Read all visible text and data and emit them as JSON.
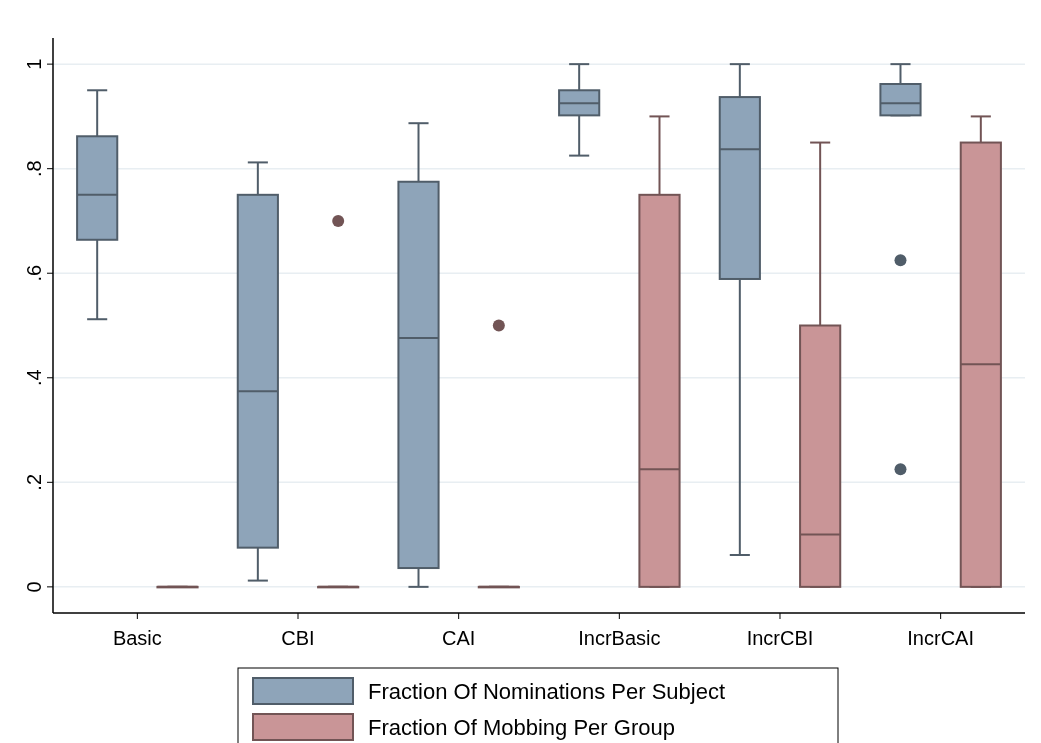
{
  "chart_data": {
    "type": "box",
    "categories": [
      "Basic",
      "CBI",
      "CAI",
      "IncrBasic",
      "IncrCBI",
      "IncrCAI"
    ],
    "ylim": [
      -0.05,
      1.05
    ],
    "yticks": [
      {
        "value": 0,
        "label": "0"
      },
      {
        "value": 0.2,
        "label": ".2"
      },
      {
        "value": 0.4,
        "label": ".4"
      },
      {
        "value": 0.6,
        "label": ".6"
      },
      {
        "value": 0.8,
        "label": ".8"
      },
      {
        "value": 1,
        "label": "1"
      }
    ],
    "grid": "y",
    "legend": "bottom",
    "series": [
      {
        "name": "Fraction Of Nominations Per Subject",
        "color": "#8ea4b9",
        "boxes": [
          {
            "low": 0.512,
            "q1": 0.664,
            "median": 0.75,
            "q3": 0.862,
            "high": 0.95
          },
          {
            "low": 0.012,
            "q1": 0.075,
            "median": 0.374,
            "q3": 0.75,
            "high": 0.812
          },
          {
            "low": 0,
            "q1": 0.036,
            "median": 0.476,
            "q3": 0.775,
            "high": 0.887
          },
          {
            "low": 0.825,
            "q1": 0.902,
            "median": 0.925,
            "q3": 0.95,
            "high": 1
          },
          {
            "low": 0.061,
            "q1": 0.589,
            "median": 0.837,
            "q3": 0.937,
            "high": 1
          },
          {
            "low": 0.902,
            "q1": 0.902,
            "median": 0.925,
            "q3": 0.962,
            "high": 1,
            "outliers": [
              0.625,
              0.225
            ]
          }
        ]
      },
      {
        "name": "Fraction Of Mobbing Per Group",
        "color": "#c99597",
        "boxes": [
          {
            "low": 0,
            "q1": 0,
            "median": 0,
            "q3": 0,
            "high": 0
          },
          {
            "low": 0,
            "q1": 0,
            "median": 0,
            "q3": 0,
            "high": 0,
            "outliers": [
              0.7
            ]
          },
          {
            "low": 0,
            "q1": 0,
            "median": 0,
            "q3": 0,
            "high": 0,
            "outliers": [
              0.5
            ]
          },
          {
            "low": 0,
            "q1": 0,
            "median": 0.225,
            "q3": 0.75,
            "high": 0.9
          },
          {
            "low": 0,
            "q1": 0,
            "median": 0.1,
            "q3": 0.5,
            "high": 0.85
          },
          {
            "low": 0,
            "q1": 0,
            "median": 0.426,
            "q3": 0.85,
            "high": 0.9
          }
        ]
      }
    ]
  }
}
